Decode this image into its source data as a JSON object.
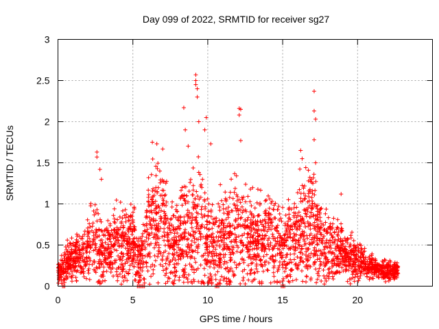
{
  "chart_data": {
    "type": "scatter",
    "title": "Day 099 of 2022, SRMTID for receiver sg27",
    "xlabel": "GPS time / hours",
    "ylabel": "SRMTID / TECUs",
    "xlim": [
      0,
      25
    ],
    "ylim": [
      0,
      3
    ],
    "x_ticks": [
      0,
      5,
      10,
      15,
      20
    ],
    "x_tick_labels": [
      "0",
      "5",
      "10",
      "15",
      "20"
    ],
    "y_ticks": [
      0,
      0.5,
      1,
      1.5,
      2,
      2.5,
      3
    ],
    "y_tick_labels": [
      "0",
      "0.5",
      "1",
      "1.5",
      "2",
      "2.5",
      "3"
    ],
    "grid": true,
    "marker": "plus",
    "series": [
      {
        "name": "SRMTID",
        "color": "#ff0000",
        "envelope": {
          "x": [
            0,
            0.5,
            1,
            1.5,
            2,
            2.5,
            3,
            3.5,
            4,
            4.5,
            5,
            5.5,
            6,
            6.5,
            7,
            7.5,
            8,
            8.5,
            9,
            9.5,
            10,
            10.5,
            11,
            11.5,
            12,
            12.5,
            13,
            13.5,
            14,
            14.5,
            15,
            15.5,
            16,
            16.5,
            17,
            17.5,
            18,
            18.5,
            19,
            19.5,
            20,
            20.5,
            21,
            21.5,
            22,
            22.5,
            22.7
          ],
          "center": [
            0.15,
            0.25,
            0.35,
            0.35,
            0.45,
            0.55,
            0.35,
            0.45,
            0.5,
            0.55,
            0.55,
            0.3,
            0.7,
            0.75,
            0.85,
            0.45,
            0.5,
            0.6,
            0.7,
            0.75,
            0.45,
            0.45,
            0.6,
            0.55,
            0.7,
            0.6,
            0.6,
            0.55,
            0.65,
            0.6,
            0.45,
            0.55,
            0.65,
            0.65,
            0.75,
            0.6,
            0.5,
            0.45,
            0.45,
            0.35,
            0.3,
            0.25,
            0.22,
            0.2,
            0.18,
            0.18,
            0.18
          ],
          "spread": [
            0.1,
            0.2,
            0.25,
            0.25,
            0.35,
            0.5,
            0.3,
            0.35,
            0.4,
            0.45,
            0.4,
            0.3,
            0.55,
            0.65,
            0.6,
            0.45,
            0.5,
            0.7,
            0.75,
            0.7,
            0.45,
            0.45,
            0.55,
            0.6,
            0.6,
            0.5,
            0.45,
            0.45,
            0.45,
            0.45,
            0.4,
            0.45,
            0.55,
            0.6,
            0.65,
            0.5,
            0.4,
            0.35,
            0.3,
            0.25,
            0.2,
            0.15,
            0.12,
            0.1,
            0.1,
            0.1,
            0.1
          ]
        },
        "peaks": [
          {
            "x": 2.6,
            "y": 1.63
          },
          {
            "x": 2.6,
            "y": 1.57
          },
          {
            "x": 2.8,
            "y": 1.42
          },
          {
            "x": 2.9,
            "y": 1.3
          },
          {
            "x": 6.3,
            "y": 1.75
          },
          {
            "x": 6.6,
            "y": 1.73
          },
          {
            "x": 6.8,
            "y": 1.4
          },
          {
            "x": 8.4,
            "y": 2.17
          },
          {
            "x": 8.5,
            "y": 1.9
          },
          {
            "x": 9.2,
            "y": 2.57
          },
          {
            "x": 9.2,
            "y": 2.5
          },
          {
            "x": 9.2,
            "y": 2.45
          },
          {
            "x": 9.3,
            "y": 2.4
          },
          {
            "x": 9.3,
            "y": 2.3
          },
          {
            "x": 9.4,
            "y": 2.0
          },
          {
            "x": 9.9,
            "y": 2.05
          },
          {
            "x": 9.8,
            "y": 1.9
          },
          {
            "x": 10.2,
            "y": 1.73
          },
          {
            "x": 12.1,
            "y": 2.16
          },
          {
            "x": 12.2,
            "y": 2.15
          },
          {
            "x": 12.1,
            "y": 2.08
          },
          {
            "x": 12.2,
            "y": 1.77
          },
          {
            "x": 16.2,
            "y": 1.65
          },
          {
            "x": 16.3,
            "y": 1.55
          },
          {
            "x": 17.1,
            "y": 2.37
          },
          {
            "x": 17.1,
            "y": 2.13
          },
          {
            "x": 17.2,
            "y": 2.03
          },
          {
            "x": 17.1,
            "y": 1.78
          },
          {
            "x": 17.2,
            "y": 1.5
          },
          {
            "x": 18.9,
            "y": 1.12
          }
        ],
        "zero_runs": [
          [
            0.3,
            0.5
          ],
          [
            5.3,
            5.8
          ],
          [
            10.5,
            10.8
          ],
          [
            14.9,
            15.2
          ]
        ]
      }
    ]
  }
}
